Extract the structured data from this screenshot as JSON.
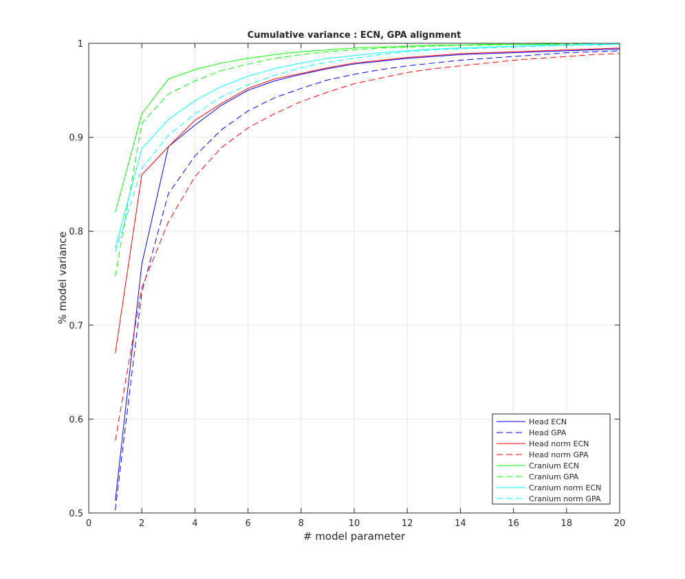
{
  "chart_data": {
    "type": "line",
    "title": "Cumulative variance : ECN, GPA  alignment",
    "xlabel": "# model parameter",
    "ylabel": "% model variance",
    "xlim": [
      0,
      20
    ],
    "ylim": [
      0.5,
      1
    ],
    "xticks": [
      0,
      2,
      4,
      6,
      8,
      10,
      12,
      14,
      16,
      18,
      20
    ],
    "yticks": [
      0.5,
      0.6,
      0.7,
      0.8,
      0.9,
      1
    ],
    "xtick_labels": [
      "0",
      "2",
      "4",
      "6",
      "8",
      "10",
      "12",
      "14",
      "16",
      "18",
      "20"
    ],
    "ytick_labels": [
      "0.5",
      "0.6",
      "0.7",
      "0.8",
      "0.9",
      "1"
    ],
    "grid": true,
    "legend_position": "bottom-right",
    "x": [
      1,
      2,
      3,
      4,
      5,
      6,
      7,
      8,
      9,
      10,
      11,
      12,
      13,
      14,
      15,
      16,
      17,
      18,
      19,
      20
    ],
    "series": [
      {
        "name": "Head ECN",
        "color": "#0000ff",
        "dash": "solid",
        "values": [
          0.513,
          0.765,
          0.89,
          0.913,
          0.934,
          0.95,
          0.96,
          0.967,
          0.973,
          0.978,
          0.981,
          0.984,
          0.986,
          0.988,
          0.989,
          0.99,
          0.991,
          0.992,
          0.993,
          0.994
        ]
      },
      {
        "name": "Head GPA",
        "color": "#0000ff",
        "dash": "dashed",
        "values": [
          0.503,
          0.735,
          0.84,
          0.88,
          0.908,
          0.928,
          0.942,
          0.952,
          0.961,
          0.967,
          0.972,
          0.976,
          0.979,
          0.982,
          0.984,
          0.986,
          0.988,
          0.99,
          0.991,
          0.992
        ]
      },
      {
        "name": "Head norm ECN",
        "color": "#ff0000",
        "dash": "solid",
        "values": [
          0.67,
          0.86,
          0.89,
          0.918,
          0.936,
          0.952,
          0.962,
          0.968,
          0.974,
          0.979,
          0.982,
          0.985,
          0.987,
          0.989,
          0.99,
          0.991,
          0.992,
          0.993,
          0.994,
          0.995
        ]
      },
      {
        "name": "Head norm GPA",
        "color": "#ff0000",
        "dash": "dashed",
        "values": [
          0.577,
          0.74,
          0.81,
          0.858,
          0.889,
          0.91,
          0.925,
          0.938,
          0.948,
          0.957,
          0.963,
          0.969,
          0.973,
          0.976,
          0.979,
          0.982,
          0.984,
          0.986,
          0.988,
          0.989
        ]
      },
      {
        "name": "Cranium ECN",
        "color": "#00ff00",
        "dash": "solid",
        "values": [
          0.82,
          0.925,
          0.962,
          0.972,
          0.979,
          0.984,
          0.988,
          0.991,
          0.993,
          0.995,
          0.996,
          0.997,
          0.998,
          0.998,
          0.999,
          0.999,
          0.999,
          1.0,
          1.0,
          1.0
        ]
      },
      {
        "name": "Cranium GPA",
        "color": "#00ff00",
        "dash": "dashed",
        "values": [
          0.752,
          0.915,
          0.946,
          0.96,
          0.971,
          0.978,
          0.984,
          0.988,
          0.991,
          0.993,
          0.995,
          0.996,
          0.997,
          0.998,
          0.998,
          0.999,
          0.999,
          0.999,
          1.0,
          1.0
        ]
      },
      {
        "name": "Cranium norm ECN",
        "color": "#00ffff",
        "dash": "solid",
        "values": [
          0.782,
          0.888,
          0.919,
          0.939,
          0.954,
          0.965,
          0.973,
          0.979,
          0.984,
          0.987,
          0.99,
          0.992,
          0.994,
          0.995,
          0.996,
          0.997,
          0.998,
          0.998,
          0.999,
          0.999
        ]
      },
      {
        "name": "Cranium norm GPA",
        "color": "#00ffff",
        "dash": "dashed",
        "values": [
          0.778,
          0.867,
          0.902,
          0.925,
          0.943,
          0.956,
          0.966,
          0.974,
          0.98,
          0.984,
          0.988,
          0.991,
          0.993,
          0.994,
          0.995,
          0.996,
          0.997,
          0.998,
          0.998,
          0.999
        ]
      }
    ]
  }
}
